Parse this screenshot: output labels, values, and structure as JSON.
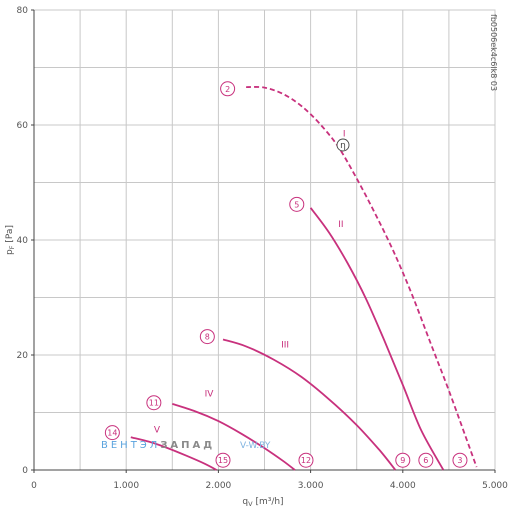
{
  "side_code": "fb0506ek4c6lk8 03",
  "watermark": {
    "part1": "ВЕНТЭЛ",
    "part2": "ЗАПАД",
    "part3": "V-W.BY"
  },
  "efficiency_symbol": "η",
  "colors": {
    "curve": "#c8317d",
    "grid": "#c8c8c8",
    "axis": "#444444",
    "text": "#555555"
  },
  "chart_data": {
    "type": "line",
    "xlabel": "qV [m³/h]",
    "ylabel": "pF [Pa]",
    "xlim": [
      0,
      5000
    ],
    "ylim": [
      0,
      80
    ],
    "x_ticks": [
      {
        "value": 0,
        "label": "0"
      },
      {
        "value": 1000,
        "label": "1.000"
      },
      {
        "value": 2000,
        "label": "2.000"
      },
      {
        "value": 3000,
        "label": "3.000"
      },
      {
        "value": 4000,
        "label": "4.000"
      },
      {
        "value": 5000,
        "label": "5.000"
      }
    ],
    "y_ticks": [
      {
        "value": 0,
        "label": "0"
      },
      {
        "value": 20,
        "label": "20"
      },
      {
        "value": 40,
        "label": "40"
      },
      {
        "value": 60,
        "label": "60"
      },
      {
        "value": 80,
        "label": "80"
      }
    ],
    "x_minor_step": 500,
    "y_minor_step": 10,
    "grid": true,
    "series": [
      {
        "name": "I",
        "dashed": true,
        "x": [
          2300,
          2500,
          2700,
          2900,
          3100,
          3300,
          3500,
          3700,
          3900,
          4100,
          4300,
          4500,
          4700,
          4800
        ],
        "y": [
          66.6,
          66.5,
          65.4,
          63.3,
          60.2,
          56.2,
          50.7,
          44.6,
          38.0,
          30.5,
          22.1,
          13.8,
          5.0,
          0.5
        ],
        "label_at": [
          3350,
          58.0
        ]
      },
      {
        "name": "II",
        "dashed": false,
        "x": [
          3000,
          3200,
          3400,
          3600,
          3800,
          4000,
          4200,
          4440
        ],
        "y": [
          45.6,
          41.3,
          36.0,
          29.8,
          22.5,
          14.8,
          6.9,
          0.0
        ],
        "label_at": [
          3300,
          42.3
        ]
      },
      {
        "name": "III",
        "dashed": false,
        "x": [
          2050,
          2300,
          2600,
          2900,
          3200,
          3500,
          3750,
          3920
        ],
        "y": [
          22.7,
          21.5,
          19.2,
          16.2,
          12.3,
          7.8,
          3.4,
          0.0
        ],
        "label_at": [
          2680,
          21.3
        ]
      },
      {
        "name": "IV",
        "dashed": false,
        "x": [
          1500,
          1750,
          2000,
          2250,
          2500,
          2700,
          2830
        ],
        "y": [
          11.5,
          10.2,
          8.5,
          6.3,
          3.8,
          1.6,
          0.0
        ],
        "label_at": [
          1850,
          12.8
        ]
      },
      {
        "name": "V",
        "dashed": false,
        "x": [
          1050,
          1250,
          1450,
          1650,
          1850,
          1980
        ],
        "y": [
          5.7,
          4.9,
          3.8,
          2.5,
          1.1,
          0.0
        ],
        "label_at": [
          1300,
          6.5
        ]
      }
    ],
    "markers": [
      {
        "label": "2",
        "x": 2100,
        "y": 66.3
      },
      {
        "label": "5",
        "x": 2850,
        "y": 46.2
      },
      {
        "label": "8",
        "x": 1880,
        "y": 23.2
      },
      {
        "label": "11",
        "x": 1300,
        "y": 11.7
      },
      {
        "label": "14",
        "x": 850,
        "y": 6.5
      },
      {
        "label": "15",
        "x": 2050,
        "y": 1.7
      },
      {
        "label": "12",
        "x": 2950,
        "y": 1.7
      },
      {
        "label": "9",
        "x": 4000,
        "y": 1.7
      },
      {
        "label": "6",
        "x": 4250,
        "y": 1.7
      },
      {
        "label": "3",
        "x": 4620,
        "y": 1.7
      }
    ]
  }
}
